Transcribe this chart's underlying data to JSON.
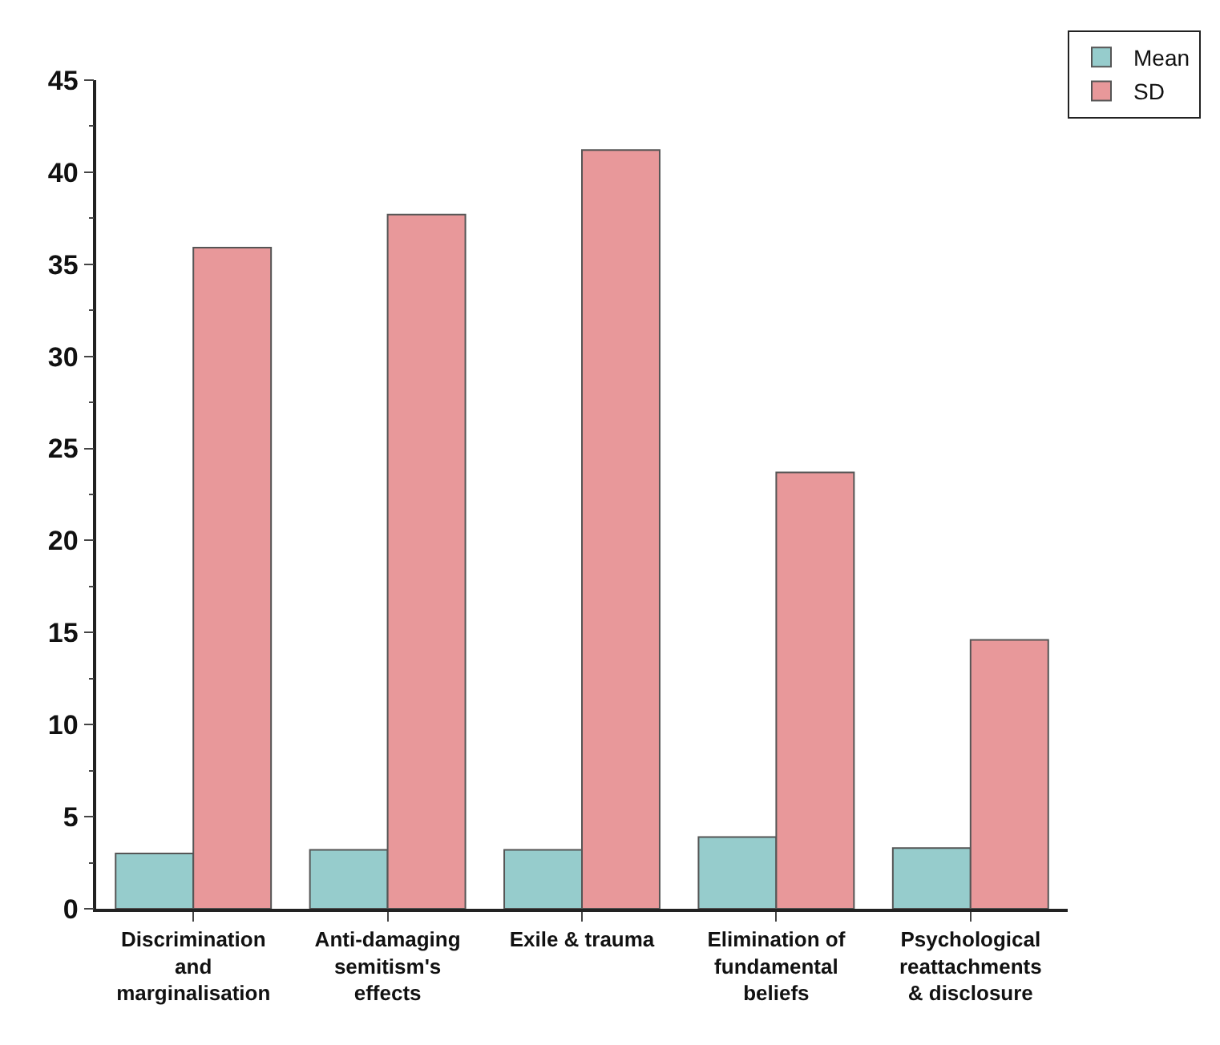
{
  "chart_data": {
    "type": "bar",
    "categories": [
      "Discrimination and marginalisation",
      "Anti-damaging semitism's effects",
      "Exile & trauma",
      "Elimination of fundamental beliefs",
      "Psychological reattachments & disclosure"
    ],
    "series": [
      {
        "name": "Mean",
        "color": "#96cccc",
        "values": [
          3.0,
          3.2,
          3.2,
          3.9,
          3.3
        ]
      },
      {
        "name": "SD",
        "color": "#e8989a",
        "values": [
          35.9,
          37.7,
          41.2,
          23.7,
          14.6
        ]
      }
    ],
    "ylim": [
      0,
      45
    ],
    "yticks": [
      0,
      5,
      10,
      15,
      20,
      25,
      30,
      35,
      40,
      45
    ],
    "legend": "top right"
  }
}
